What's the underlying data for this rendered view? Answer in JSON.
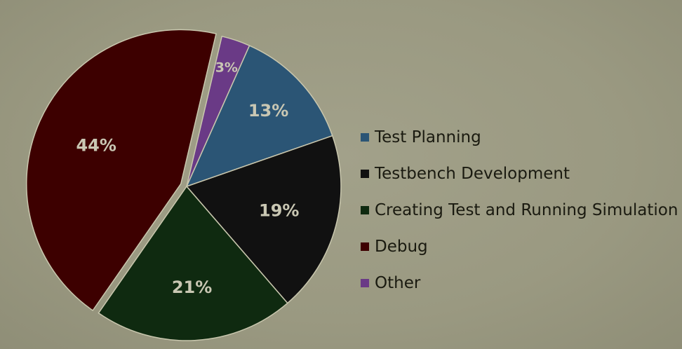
{
  "chart_data": {
    "type": "pie",
    "title": "",
    "legend_position": "right",
    "slices": [
      {
        "label": "Test Planning",
        "value": 13,
        "display": "13%",
        "color": "#2b5575"
      },
      {
        "label": "Testbench Development",
        "value": 19,
        "display": "19%",
        "color": "#111111"
      },
      {
        "label": "Creating Test and Running Simulation",
        "value": 21,
        "display": "21%",
        "color": "#0f2a10"
      },
      {
        "label": "Debug",
        "value": 44,
        "display": "44%",
        "color": "#3d0000",
        "exploded": true
      },
      {
        "label": "Other",
        "value": 3,
        "display": "3%",
        "color": "#6a3a86"
      }
    ]
  }
}
